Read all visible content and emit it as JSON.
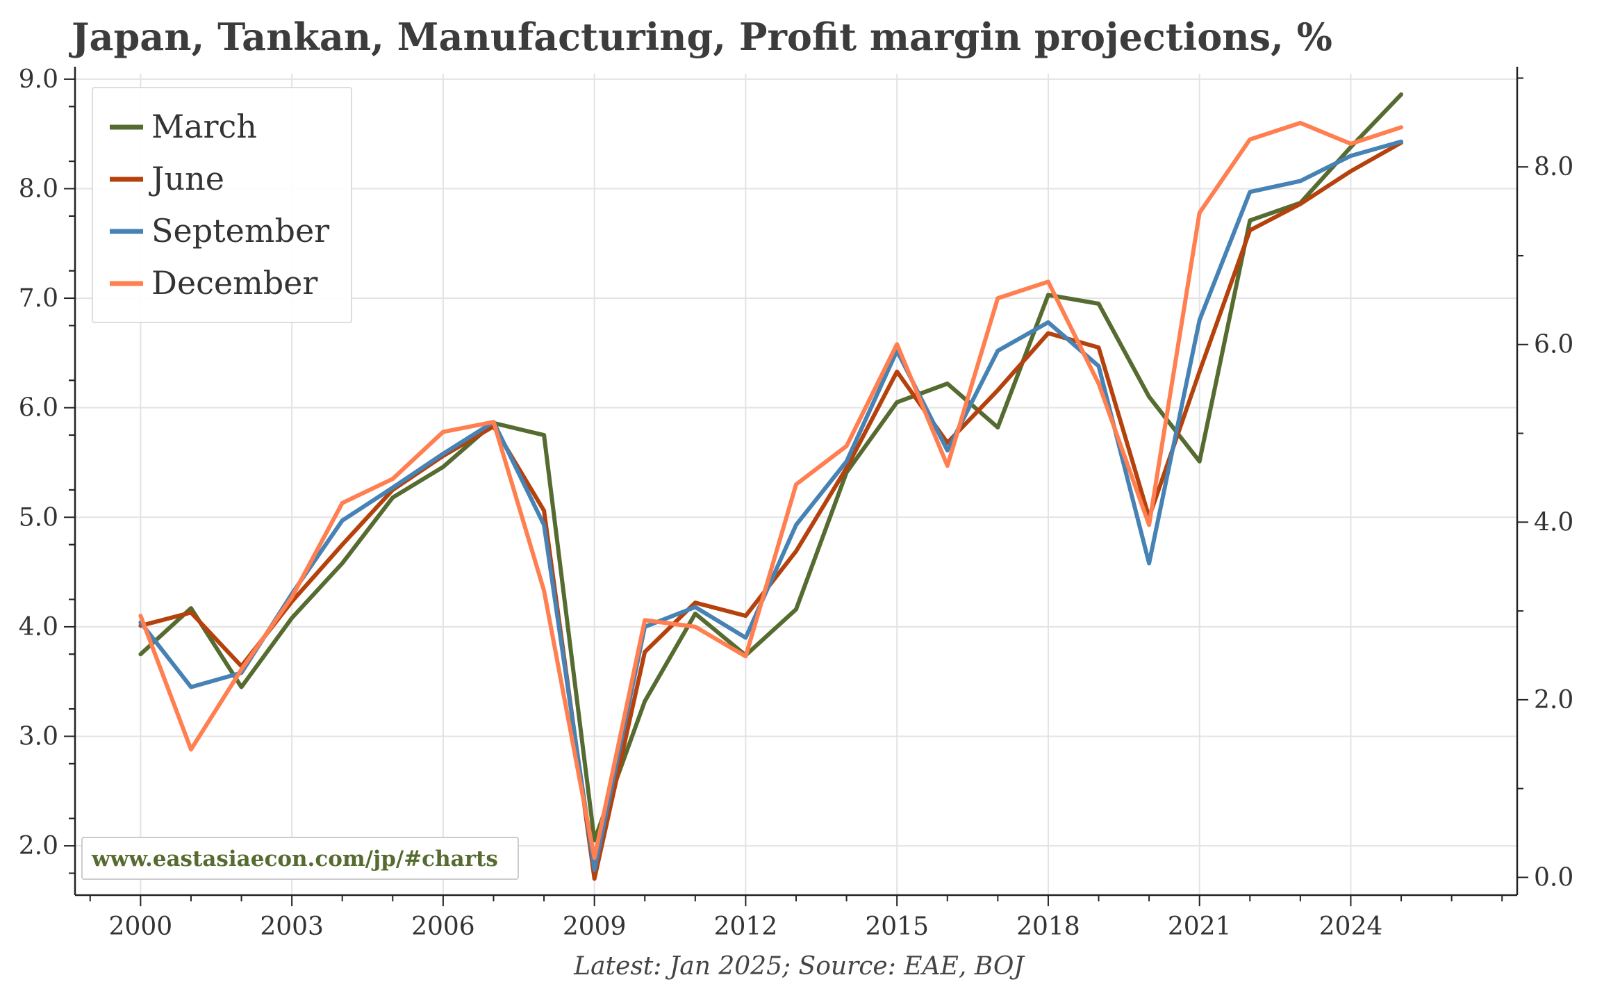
{
  "chart_data": {
    "type": "line",
    "title": "Japan, Tankan, Manufacturing, Profit margin projections, %",
    "source_note": "Latest: Jan 2025; Source: EAE, BOJ",
    "watermark": "www.eastasiaecon.com/jp/#charts",
    "x": [
      2000,
      2001,
      2002,
      2003,
      2004,
      2005,
      2006,
      2007,
      2008,
      2009,
      2010,
      2011,
      2012,
      2013,
      2014,
      2015,
      2016,
      2017,
      2018,
      2019,
      2020,
      2021,
      2022,
      2023,
      2024,
      2025
    ],
    "xlim": [
      1998.7,
      2027.3
    ],
    "x_ticks": [
      2000,
      2003,
      2006,
      2009,
      2012,
      2015,
      2018,
      2021,
      2024
    ],
    "x_tick_labels": [
      "2000",
      "2003",
      "2006",
      "2009",
      "2012",
      "2015",
      "2018",
      "2021",
      "2024"
    ],
    "ylim_left": [
      1.55,
      9.05
    ],
    "y_ticks_left": [
      "2.0",
      "3.0",
      "4.0",
      "5.0",
      "6.0",
      "7.0",
      "8.0",
      "9.0"
    ],
    "ylim_right": [
      -0.2,
      9.05
    ],
    "y_ticks_right": [
      "0.0",
      "2.0",
      "4.0",
      "6.0",
      "8.0"
    ],
    "grid": true,
    "legend_position": "top-left",
    "series": [
      {
        "name": "March",
        "color": "#556b2f",
        "values": [
          3.75,
          4.17,
          3.45,
          4.08,
          4.58,
          5.18,
          5.46,
          5.86,
          5.75,
          2.05,
          3.32,
          4.12,
          3.74,
          4.16,
          5.41,
          6.05,
          6.22,
          5.82,
          7.03,
          6.95,
          6.1,
          5.51,
          7.71,
          7.87,
          8.38,
          8.86
        ]
      },
      {
        "name": "June",
        "color": "#b5410d",
        "values": [
          4.01,
          4.13,
          3.64,
          4.23,
          4.75,
          5.25,
          5.56,
          5.83,
          5.06,
          1.7,
          3.77,
          4.22,
          4.1,
          4.69,
          5.45,
          6.33,
          5.68,
          6.16,
          6.68,
          6.55,
          5.0,
          6.33,
          7.62,
          7.86,
          8.16,
          8.42
        ]
      },
      {
        "name": "September",
        "color": "#4682b4",
        "values": [
          4.04,
          3.45,
          3.58,
          4.3,
          4.97,
          5.27,
          5.58,
          5.87,
          4.93,
          1.78,
          4.0,
          4.18,
          3.9,
          4.93,
          5.51,
          6.52,
          5.61,
          6.52,
          6.78,
          6.38,
          4.58,
          6.8,
          7.97,
          8.07,
          8.3,
          8.43
        ]
      },
      {
        "name": "December",
        "color": "#ff7f50",
        "values": [
          4.1,
          2.88,
          3.61,
          4.27,
          5.13,
          5.35,
          5.78,
          5.87,
          4.33,
          1.89,
          4.06,
          4.0,
          3.73,
          5.3,
          5.65,
          6.58,
          5.47,
          7.0,
          7.15,
          6.22,
          4.93,
          7.78,
          8.45,
          8.6,
          8.41,
          8.56
        ]
      }
    ]
  }
}
